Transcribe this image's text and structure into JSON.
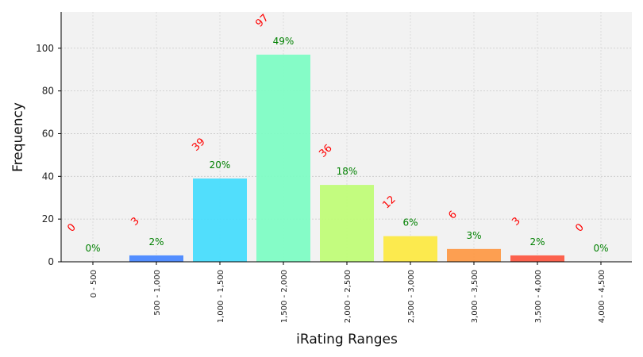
{
  "chart_data": {
    "type": "bar",
    "title": "",
    "xlabel": "iRating Ranges",
    "ylabel": "Frequency",
    "ylim": [
      0,
      117
    ],
    "yticks": [
      0,
      20,
      40,
      60,
      80,
      100
    ],
    "grid": true,
    "categories": [
      "0 - 500",
      "500 - 1,000",
      "1,000 - 1,500",
      "1,500 - 2,000",
      "2,000 - 2,500",
      "2,500 - 3,000",
      "3,000 - 3,500",
      "3,500 - 4,000",
      "4,000 - 4,500"
    ],
    "values": [
      0,
      3,
      39,
      97,
      36,
      12,
      6,
      3,
      0
    ],
    "count_labels": [
      "0",
      "3",
      "39",
      "97",
      "36",
      "12",
      "6",
      "3",
      "0"
    ],
    "percent_labels": [
      "0%",
      "2%",
      "20%",
      "49%",
      "18%",
      "6%",
      "3%",
      "2%",
      "0%"
    ],
    "colors": [
      "#3a2fd1",
      "#4a88ff",
      "#48dcfc",
      "#7efcc4",
      "#c0fc78",
      "#fce945",
      "#fd9a48",
      "#fc5a44",
      "#c00000"
    ],
    "plot_background": "#f2f2f2",
    "count_label_color": "#ff0000",
    "percent_label_color": "#008000"
  }
}
